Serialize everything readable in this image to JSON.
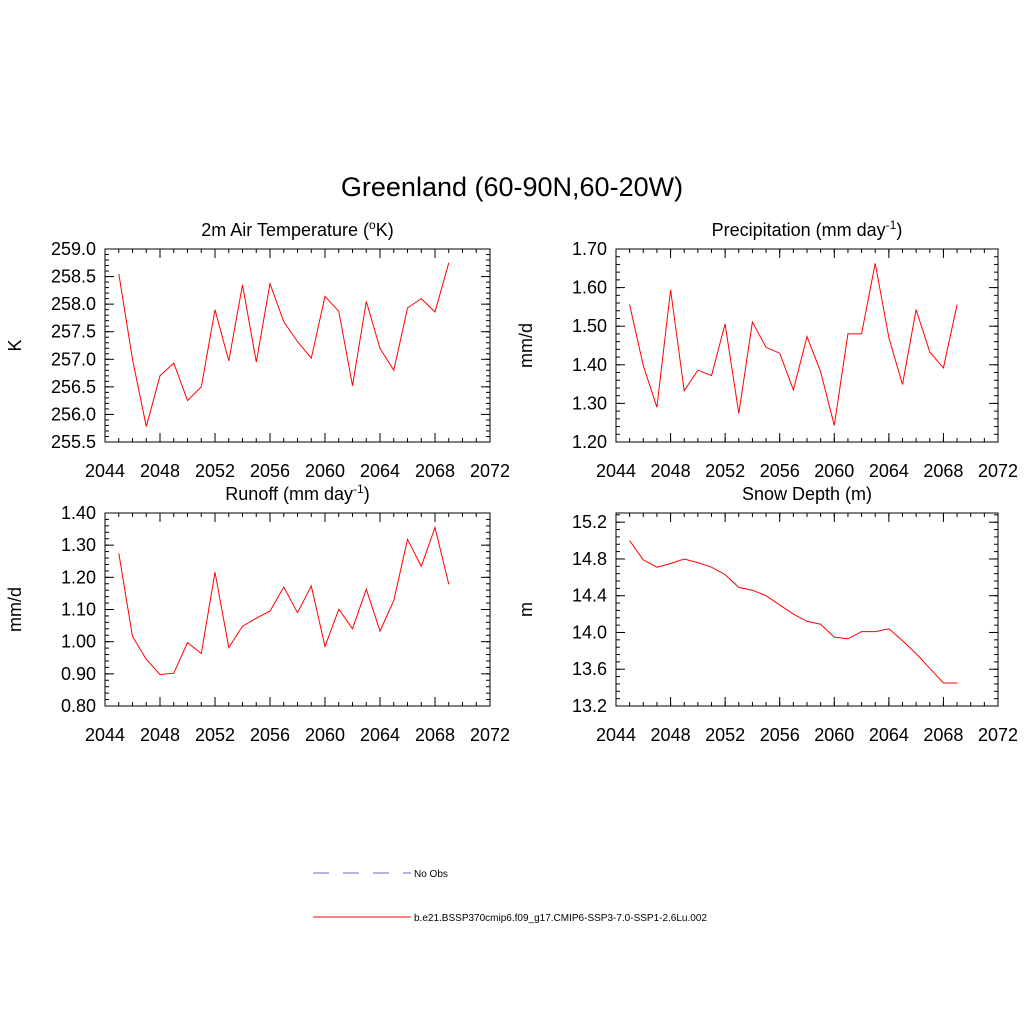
{
  "figure": {
    "title": "Greenland (60-90N,60-20W)"
  },
  "legend": {
    "entries": [
      {
        "label": "No Obs",
        "color": "#9999dd",
        "style": "dashed"
      },
      {
        "label": "b.e21.BSSP370cmip6.f09_g17.CMIP6-SSP3-7.0-SSP1-2.6Lu.002",
        "color": "#ff0000",
        "style": "solid"
      }
    ]
  },
  "chart_data": [
    {
      "type": "line",
      "title_main": "2m Air Temperature (",
      "title_sup_pre": "o",
      "title_after_sup": "K)",
      "ylabel": "K",
      "xlim": [
        2044,
        2072
      ],
      "ylim": [
        255.5,
        259.0
      ],
      "xticks": [
        2044,
        2048,
        2052,
        2056,
        2060,
        2064,
        2068,
        2072
      ],
      "xtick_labels": [
        "2044",
        "2048",
        "2052",
        "2056",
        "2060",
        "2064",
        "2068",
        "2072"
      ],
      "yticks": [
        255.5,
        256.0,
        256.5,
        257.0,
        257.5,
        258.0,
        258.5,
        259.0
      ],
      "ytick_labels": [
        "255.5",
        "256.0",
        "256.5",
        "257.0",
        "257.5",
        "258.0",
        "258.5",
        "259.0"
      ],
      "x": [
        2045,
        2046,
        2047,
        2048,
        2049,
        2050,
        2051,
        2052,
        2053,
        2054,
        2055,
        2056,
        2057,
        2058,
        2059,
        2060,
        2061,
        2062,
        2063,
        2064,
        2065,
        2066,
        2067,
        2068,
        2069
      ],
      "series": [
        {
          "color": "#ff0000",
          "values": [
            258.55,
            257.0,
            255.78,
            256.7,
            256.93,
            256.25,
            256.5,
            257.9,
            256.97,
            258.35,
            256.95,
            258.37,
            257.68,
            257.32,
            257.02,
            258.14,
            257.87,
            256.52,
            258.05,
            257.2,
            256.8,
            257.93,
            258.1,
            257.86,
            258.75
          ]
        }
      ]
    },
    {
      "type": "line",
      "title_main": "Precipitation (mm day",
      "title_sup_post": "-1",
      "title_close": ")",
      "ylabel": "mm/d",
      "xlim": [
        2044,
        2072
      ],
      "ylim": [
        1.2,
        1.7
      ],
      "xticks": [
        2044,
        2048,
        2052,
        2056,
        2060,
        2064,
        2068,
        2072
      ],
      "xtick_labels": [
        "2044",
        "2048",
        "2052",
        "2056",
        "2060",
        "2064",
        "2068",
        "2072"
      ],
      "yticks": [
        1.2,
        1.3,
        1.4,
        1.5,
        1.6,
        1.7
      ],
      "ytick_labels": [
        "1.20",
        "1.30",
        "1.40",
        "1.50",
        "1.60",
        "1.70"
      ],
      "x": [
        2045,
        2046,
        2047,
        2048,
        2049,
        2050,
        2051,
        2052,
        2053,
        2054,
        2055,
        2056,
        2057,
        2058,
        2059,
        2060,
        2061,
        2062,
        2063,
        2064,
        2065,
        2066,
        2067,
        2068,
        2069
      ],
      "series": [
        {
          "color": "#ff0000",
          "values": [
            1.556,
            1.398,
            1.29,
            1.594,
            1.333,
            1.386,
            1.372,
            1.506,
            1.274,
            1.511,
            1.445,
            1.43,
            1.335,
            1.473,
            1.382,
            1.243,
            1.48,
            1.48,
            1.663,
            1.47,
            1.349,
            1.543,
            1.433,
            1.392,
            1.556
          ]
        }
      ]
    },
    {
      "type": "line",
      "title_main": "Runoff (mm day",
      "title_sup_post": "-1",
      "title_close": ")",
      "ylabel": "mm/d",
      "xlim": [
        2044,
        2072
      ],
      "ylim": [
        0.8,
        1.4
      ],
      "xticks": [
        2044,
        2048,
        2052,
        2056,
        2060,
        2064,
        2068,
        2072
      ],
      "xtick_labels": [
        "2044",
        "2048",
        "2052",
        "2056",
        "2060",
        "2064",
        "2068",
        "2072"
      ],
      "yticks": [
        0.8,
        0.9,
        1.0,
        1.1,
        1.2,
        1.3,
        1.4
      ],
      "ytick_labels": [
        "0.80",
        "0.90",
        "1.00",
        "1.10",
        "1.20",
        "1.30",
        "1.40"
      ],
      "x": [
        2045,
        2046,
        2047,
        2048,
        2049,
        2050,
        2051,
        2052,
        2053,
        2054,
        2055,
        2056,
        2057,
        2058,
        2059,
        2060,
        2061,
        2062,
        2063,
        2064,
        2065,
        2066,
        2067,
        2068,
        2069
      ],
      "series": [
        {
          "color": "#ff0000",
          "values": [
            1.275,
            1.016,
            0.945,
            0.898,
            0.902,
            0.997,
            0.963,
            1.216,
            0.982,
            1.048,
            1.073,
            1.095,
            1.17,
            1.09,
            1.173,
            0.985,
            1.101,
            1.04,
            1.163,
            1.033,
            1.128,
            1.318,
            1.234,
            1.355,
            1.178
          ]
        }
      ]
    },
    {
      "type": "line",
      "title_main": "Snow Depth (m)",
      "ylabel": "m",
      "xlim": [
        2044,
        2072
      ],
      "ylim": [
        13.2,
        15.3
      ],
      "xticks": [
        2044,
        2048,
        2052,
        2056,
        2060,
        2064,
        2068,
        2072
      ],
      "xtick_labels": [
        "2044",
        "2048",
        "2052",
        "2056",
        "2060",
        "2064",
        "2068",
        "2072"
      ],
      "yticks": [
        13.2,
        13.6,
        14.0,
        14.4,
        14.8,
        15.2
      ],
      "ytick_labels": [
        "13.2",
        "13.6",
        "14.0",
        "14.4",
        "14.8",
        "15.2"
      ],
      "x": [
        2045,
        2046,
        2047,
        2048,
        2049,
        2050,
        2051,
        2052,
        2053,
        2054,
        2055,
        2056,
        2057,
        2058,
        2059,
        2060,
        2061,
        2062,
        2063,
        2064,
        2065,
        2066,
        2067,
        2068,
        2069
      ],
      "series": [
        {
          "color": "#ff0000",
          "values": [
            15.0,
            14.79,
            14.71,
            14.75,
            14.8,
            14.76,
            14.71,
            14.63,
            14.49,
            14.46,
            14.4,
            14.3,
            14.2,
            14.12,
            14.09,
            13.95,
            13.93,
            14.01,
            14.01,
            14.04,
            13.91,
            13.77,
            13.61,
            13.45,
            13.45
          ]
        }
      ]
    }
  ]
}
